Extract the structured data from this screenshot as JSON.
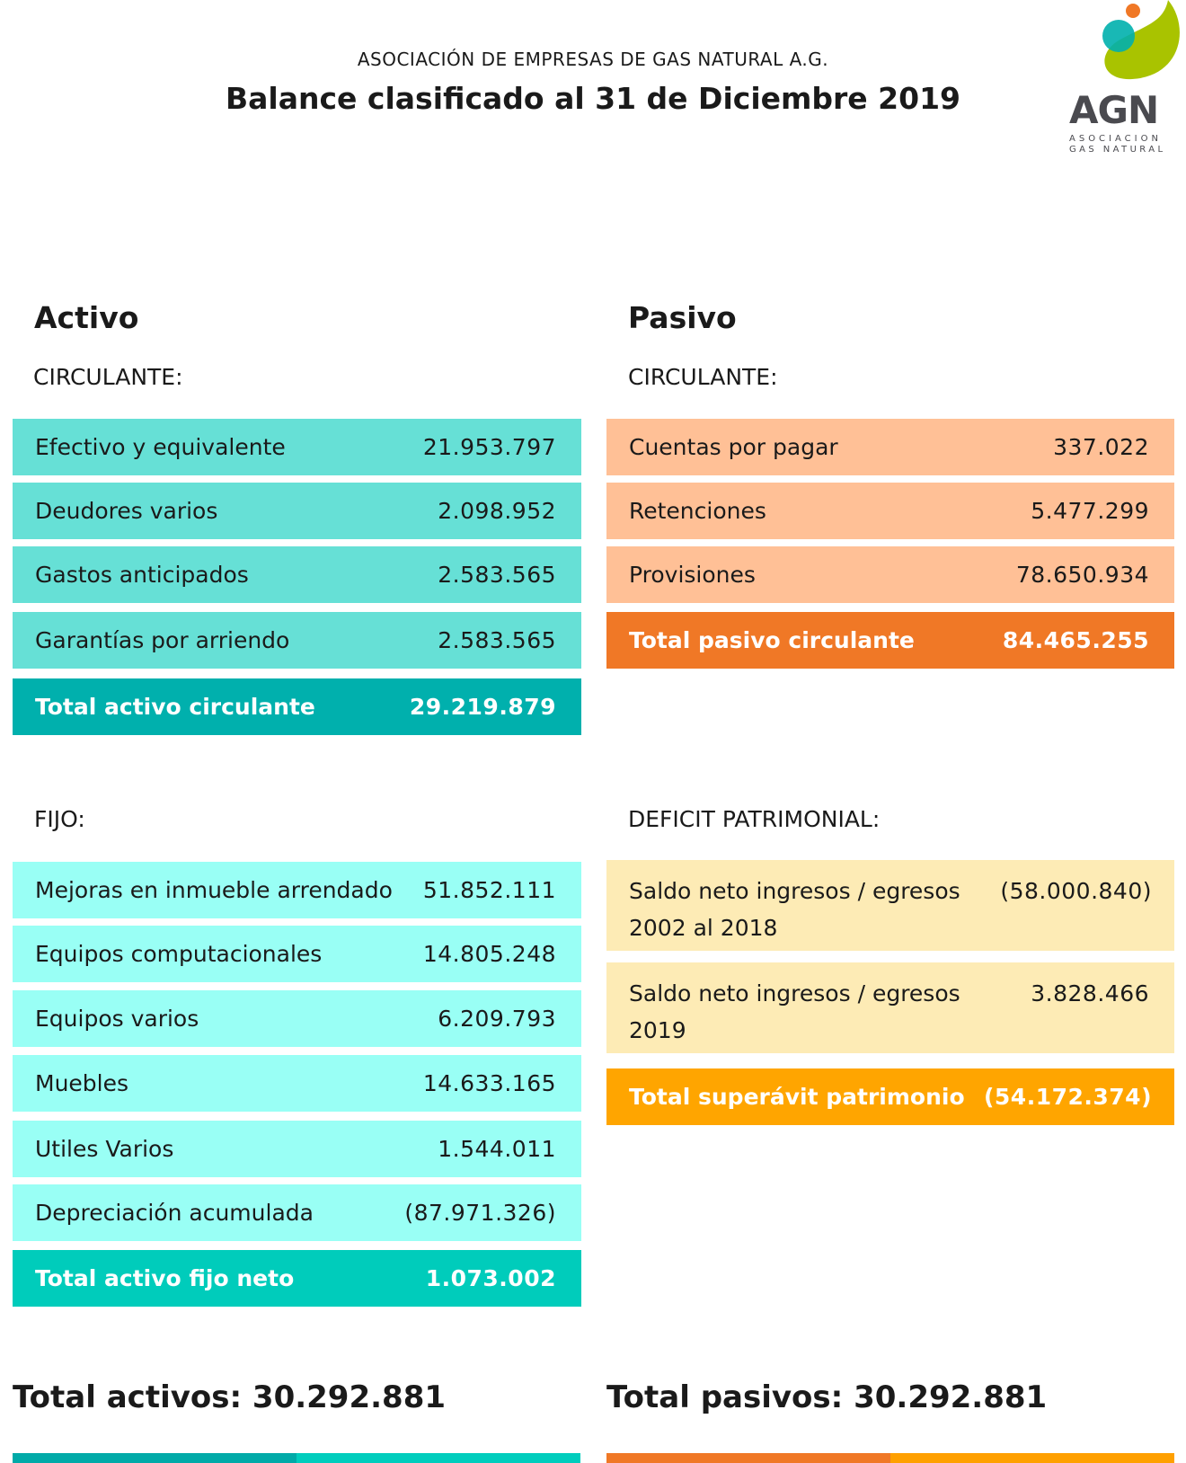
{
  "header": {
    "organization": "ASOCIACIÓN DE EMPRESAS DE GAS NATURAL A.G.",
    "title": "Balance clasificado al 31 de Diciembre 2019"
  },
  "logo": {
    "text": "AGN",
    "line1": "ASOCIACION",
    "line2": "GAS NATURAL",
    "colors": [
      "#f07826",
      "#00b0ad",
      "#a9c300"
    ]
  },
  "activo": {
    "heading": "Activo",
    "circulante_label": "CIRCULANTE:",
    "circulante": [
      {
        "label": "Efectivo y equivalente",
        "value": "21.953.797"
      },
      {
        "label": "Deudores varios",
        "value": "2.098.952"
      },
      {
        "label": "Gastos anticipados",
        "value": "2.583.565"
      },
      {
        "label": "Garantías por arriendo",
        "value": "2.583.565"
      }
    ],
    "circulante_total": {
      "label": "Total activo circulante",
      "value": "29.219.879"
    },
    "fijo_label": "FIJO:",
    "fijo": [
      {
        "label": "Mejoras en inmueble arrendado",
        "value": "51.852.111"
      },
      {
        "label": "Equipos computacionales",
        "value": "14.805.248"
      },
      {
        "label": "Equipos varios",
        "value": "6.209.793"
      },
      {
        "label": "Muebles",
        "value": "14.633.165"
      },
      {
        "label": "Utiles Varios",
        "value": "1.544.011"
      },
      {
        "label": "Depreciación acumulada",
        "value": "(87.971.326)"
      }
    ],
    "fijo_total": {
      "label": "Total activo fijo neto",
      "value": "1.073.002"
    },
    "grand_total": "Total activos: 30.292.881"
  },
  "pasivo": {
    "heading": "Pasivo",
    "circulante_label": "CIRCULANTE:",
    "circulante": [
      {
        "label": "Cuentas por pagar",
        "value": "337.022"
      },
      {
        "label": "Retenciones",
        "value": "5.477.299"
      },
      {
        "label": "Provisiones",
        "value": "78.650.934"
      }
    ],
    "circulante_total": {
      "label": "Total pasivo circulante",
      "value": "84.465.255"
    },
    "deficit_label": "DEFICIT PATRIMONIAL:",
    "deficit": [
      {
        "label": "Saldo neto ingresos / egresos 2002 al 2018",
        "value": "(58.000.840)"
      },
      {
        "label": "Saldo neto ingresos / egresos 2019",
        "value": "3.828.466"
      }
    ],
    "deficit_total": {
      "label": "Total superávit patrimonio",
      "value": "(54.172.374)"
    },
    "grand_total": "Total pasivos: 30.292.881"
  }
}
